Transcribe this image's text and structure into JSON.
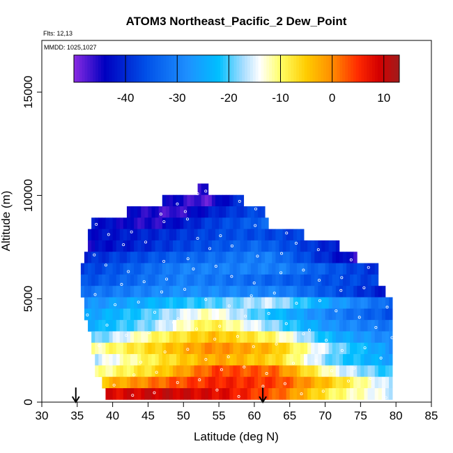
{
  "chart_data": {
    "type": "heatmap",
    "title": "ATOM3 Northeast_Pacific_2 Dew_Point",
    "flights_label": "Flts: 12,13",
    "dates_label": "MMDD: 1025,1027",
    "xlabel": "Latitude (deg N)",
    "ylabel": "Altitude (m)",
    "xlim": [
      30,
      85
    ],
    "ylim": [
      0,
      17500
    ],
    "x_ticks": [
      "30",
      "35",
      "40",
      "45",
      "50",
      "55",
      "60",
      "65",
      "70",
      "75",
      "80",
      "85"
    ],
    "y_ticks": [
      "0",
      "5000",
      "10000",
      "15000"
    ],
    "colorbar": {
      "range": [
        -50,
        13
      ],
      "tick_values": [
        -40,
        -30,
        -20,
        -10,
        0,
        10
      ],
      "tick_labels": [
        "-40",
        "-30",
        "-20",
        "-10",
        "0",
        "10"
      ],
      "stops": [
        {
          "v": -50,
          "c": "#8a2be2"
        },
        {
          "v": -44,
          "c": "#0000c0"
        },
        {
          "v": -36,
          "c": "#0050e8"
        },
        {
          "v": -28,
          "c": "#1e90ff"
        },
        {
          "v": -22,
          "c": "#00bfff"
        },
        {
          "v": -17,
          "c": "#aedfff"
        },
        {
          "v": -14,
          "c": "#ffffff"
        },
        {
          "v": -10,
          "c": "#ffff66"
        },
        {
          "v": -5,
          "c": "#ffcc00"
        },
        {
          "v": 0,
          "c": "#ff8c00"
        },
        {
          "v": 5,
          "c": "#ff2a00"
        },
        {
          "v": 9,
          "c": "#d40000"
        },
        {
          "v": 13,
          "c": "#a01c1c"
        }
      ]
    },
    "profile_rows": [
      {
        "alt": 10300,
        "a": 52.0,
        "b": 53.5,
        "d": [
          -47,
          -45
        ]
      },
      {
        "alt": 9750,
        "a": 47.0,
        "b": 58.5,
        "d": [
          -43,
          -48,
          -38
        ]
      },
      {
        "alt": 9200,
        "a": 42.0,
        "b": 61.5,
        "d": [
          -44,
          -47,
          -40,
          -36
        ]
      },
      {
        "alt": 8650,
        "a": 37.0,
        "b": 62.0,
        "d": [
          -42,
          -46,
          -38,
          -33
        ]
      },
      {
        "alt": 8100,
        "a": 36.5,
        "b": 67.0,
        "d": [
          -43,
          -40,
          -36,
          -38
        ]
      },
      {
        "alt": 7550,
        "a": 36.5,
        "b": 72.0,
        "d": [
          -44,
          -38,
          -33,
          -42
        ]
      },
      {
        "alt": 7000,
        "a": 36.0,
        "b": 74.5,
        "d": [
          -40,
          -34,
          -30,
          -46
        ]
      },
      {
        "alt": 6450,
        "a": 35.5,
        "b": 77.5,
        "d": [
          -38,
          -30,
          -30,
          -40
        ]
      },
      {
        "alt": 5900,
        "a": 35.5,
        "b": 77.5,
        "d": [
          -36,
          -30,
          -34,
          -38
        ]
      },
      {
        "alt": 5350,
        "a": 35.5,
        "b": 78.5,
        "d": [
          -32,
          -28,
          -30,
          -42
        ]
      },
      {
        "alt": 4800,
        "a": 36.0,
        "b": 79.5,
        "d": [
          -28,
          -24,
          -20,
          -16,
          -26,
          -34
        ]
      },
      {
        "alt": 4250,
        "a": 36.0,
        "b": 79.5,
        "d": [
          -26,
          -20,
          -12,
          -22,
          -30,
          -36
        ]
      },
      {
        "alt": 3700,
        "a": 36.5,
        "b": 79.5,
        "d": [
          -24,
          -18,
          -8,
          -18,
          -28,
          -32
        ]
      },
      {
        "alt": 3150,
        "a": 37.0,
        "b": 79.5,
        "d": [
          -20,
          -10,
          -4,
          -10,
          -24,
          -30
        ]
      },
      {
        "alt": 2600,
        "a": 37.0,
        "b": 79.5,
        "d": [
          -12,
          -6,
          0,
          -4,
          -18,
          -28
        ]
      },
      {
        "alt": 2050,
        "a": 37.5,
        "b": 79.5,
        "d": [
          -16,
          -8,
          -2,
          -6,
          -20,
          -26
        ]
      },
      {
        "alt": 1500,
        "a": 37.5,
        "b": 79.5,
        "d": [
          -12,
          -6,
          4,
          2,
          -14,
          -22
        ]
      },
      {
        "alt": 950,
        "a": 38.5,
        "b": 79.5,
        "d": [
          -4,
          2,
          6,
          4,
          -6,
          -18
        ]
      },
      {
        "alt": 400,
        "a": 39.0,
        "b": 79.5,
        "d": [
          8,
          10,
          8,
          2,
          -10,
          -16
        ]
      }
    ],
    "arrows_lat": [
      34.8,
      61.2
    ]
  }
}
